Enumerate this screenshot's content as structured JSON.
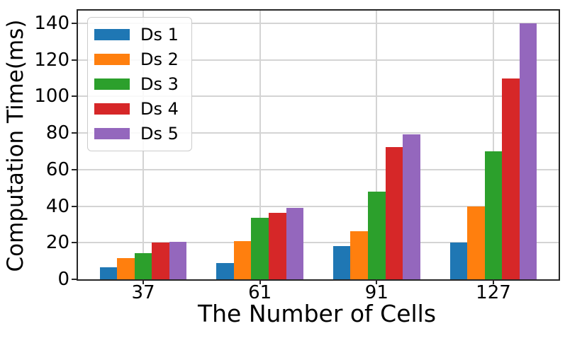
{
  "chart_data": {
    "type": "bar",
    "title": "",
    "xlabel": "The Number of Cells",
    "ylabel": "Computation Time(ms)",
    "categories": [
      "37",
      "61",
      "91",
      "127"
    ],
    "series": [
      {
        "name": "Ds 1",
        "color": "#1f77b4",
        "values": [
          6.5,
          9,
          18,
          20
        ]
      },
      {
        "name": "Ds 2",
        "color": "#ff7f0e",
        "values": [
          11.5,
          21,
          26.5,
          40
        ]
      },
      {
        "name": "Ds 3",
        "color": "#2ca02c",
        "values": [
          14.5,
          33.5,
          48,
          70
        ]
      },
      {
        "name": "Ds 4",
        "color": "#d62728",
        "values": [
          20,
          36.5,
          72.5,
          110
        ]
      },
      {
        "name": "Ds 5",
        "color": "#9467bd",
        "values": [
          20.5,
          39,
          79.5,
          140
        ]
      }
    ],
    "yticks": [
      0,
      20,
      40,
      60,
      80,
      100,
      120,
      140
    ],
    "ylim": [
      0,
      147
    ],
    "grid": true,
    "legend_position": "upper-left"
  }
}
